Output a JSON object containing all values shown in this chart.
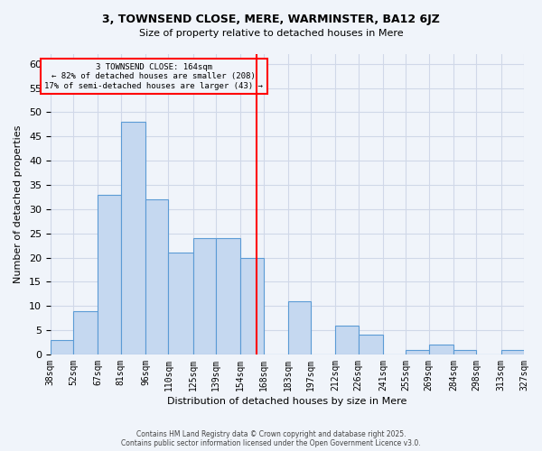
{
  "title1": "3, TOWNSEND CLOSE, MERE, WARMINSTER, BA12 6JZ",
  "title2": "Size of property relative to detached houses in Mere",
  "xlabel": "Distribution of detached houses by size in Mere",
  "ylabel": "Number of detached properties",
  "bin_labels": [
    "38sqm",
    "52sqm",
    "67sqm",
    "81sqm",
    "96sqm",
    "110sqm",
    "125sqm",
    "139sqm",
    "154sqm",
    "168sqm",
    "183sqm",
    "197sqm",
    "212sqm",
    "226sqm",
    "241sqm",
    "255sqm",
    "269sqm",
    "284sqm",
    "298sqm",
    "313sqm",
    "327sqm"
  ],
  "bin_edges": [
    38,
    52,
    67,
    81,
    96,
    110,
    125,
    139,
    154,
    168,
    183,
    197,
    212,
    226,
    241,
    255,
    269,
    284,
    298,
    313,
    327
  ],
  "counts": [
    3,
    9,
    33,
    48,
    32,
    21,
    24,
    24,
    20,
    0,
    11,
    0,
    6,
    4,
    0,
    1,
    2,
    1,
    0,
    1
  ],
  "bar_color": "#c5d8f0",
  "bar_edge_color": "#5b9bd5",
  "reference_line_x": 164,
  "reference_line_color": "red",
  "annotation_title": "3 TOWNSEND CLOSE: 164sqm",
  "annotation_line1": "← 82% of detached houses are smaller (208)",
  "annotation_line2": "17% of semi-detached houses are larger (43) →",
  "annotation_box_color": "red",
  "ylim": [
    0,
    62
  ],
  "yticks": [
    0,
    5,
    10,
    15,
    20,
    25,
    30,
    35,
    40,
    45,
    50,
    55,
    60
  ],
  "footer1": "Contains HM Land Registry data © Crown copyright and database right 2025.",
  "footer2": "Contains public sector information licensed under the Open Government Licence v3.0.",
  "bg_color": "#f0f4fa",
  "grid_color": "#d0d8e8"
}
